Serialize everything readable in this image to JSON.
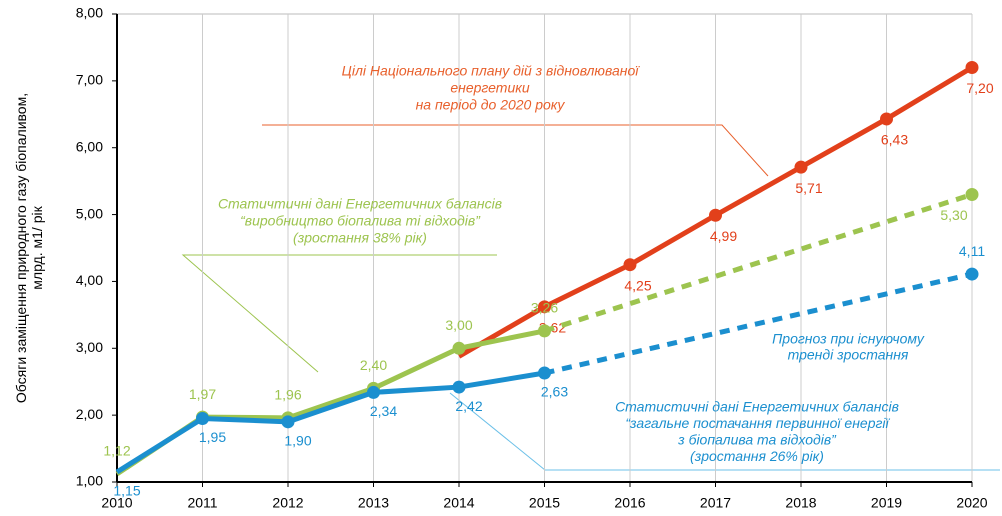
{
  "chart_data": {
    "type": "line",
    "ylabel": [
      "Обсяги заміщення природного газу біопаливом,",
      "млрд. м1/ рік"
    ],
    "x": [
      2010,
      2011,
      2012,
      2013,
      2014,
      2015,
      2016,
      2017,
      2018,
      2019,
      2020
    ],
    "xlim": [
      2010,
      2020
    ],
    "xticks": [
      2010,
      2011,
      2012,
      2013,
      2014,
      2015,
      2016,
      2017,
      2018,
      2019,
      2020
    ],
    "ylim": [
      1,
      8
    ],
    "yticks": [
      {
        "value": 1,
        "label": "1,00"
      },
      {
        "value": 2,
        "label": "2,00"
      },
      {
        "value": 3,
        "label": "3,00"
      },
      {
        "value": 4,
        "label": "4,00"
      },
      {
        "value": 5,
        "label": "5,00"
      },
      {
        "value": 6,
        "label": "6,00"
      },
      {
        "value": 7,
        "label": "7,00"
      },
      {
        "value": 8,
        "label": "8,00"
      }
    ],
    "grid": "x",
    "series": [
      {
        "color": "#e2401b",
        "values": [
          null,
          null,
          null,
          null,
          2.88,
          3.62,
          4.25,
          4.99,
          5.71,
          6.43,
          7.2
        ],
        "value_labels": [
          null,
          null,
          null,
          null,
          null,
          "3,62",
          "4,25",
          "4,99",
          "5,71",
          "6,43",
          "7,20"
        ]
      },
      {
        "color": "#9dc44f",
        "values": [
          1.12,
          1.97,
          1.96,
          2.4,
          3.0,
          3.26,
          null,
          null,
          null,
          null,
          null
        ],
        "value_labels": [
          "1,12",
          "1,97",
          "1,96",
          "2,40",
          "3,00",
          "3,26",
          null,
          null,
          null,
          null,
          null
        ]
      },
      {
        "color": "#1b8fcf",
        "values": [
          1.15,
          1.95,
          1.9,
          2.34,
          2.42,
          2.63,
          null,
          null,
          null,
          null,
          null
        ],
        "value_labels": [
          "1,15",
          "1,95",
          "1,90",
          "2,34",
          "2,42",
          "2,63",
          null,
          null,
          null,
          null,
          null
        ]
      },
      {
        "color": "#9dc44f",
        "dashed": true,
        "x": [
          2015,
          2020
        ],
        "values": [
          3.26,
          5.3
        ],
        "value_labels": [
          null,
          "5,30"
        ]
      },
      {
        "color": "#1b8fcf",
        "dashed": true,
        "x": [
          2015,
          2020
        ],
        "values": [
          2.63,
          4.11
        ],
        "value_labels": [
          null,
          "4,11"
        ]
      }
    ],
    "annotations": [
      {
        "color": "#e8602c",
        "lines": [
          "Цілі Національного плану дій з відновлюваної",
          "енергетики",
          "на період до 2020 року"
        ]
      },
      {
        "color": "#9dc44f",
        "lines": [
          "Статичтичні дані Енергетичних балансів",
          "“виробництво біопалива ті відходів”",
          "(зростання 38% рік)"
        ]
      },
      {
        "color": "#1b8fcf",
        "lines": [
          "Прогноз при існуючому",
          "тренді зростання"
        ]
      },
      {
        "color": "#1b8fcf",
        "lines": [
          "Статистичні дані Енергетичних балансів",
          "“загальне постачання первинної енергії",
          "з біопалива та відходів”",
          "(зростання 26% рік)"
        ]
      }
    ]
  }
}
